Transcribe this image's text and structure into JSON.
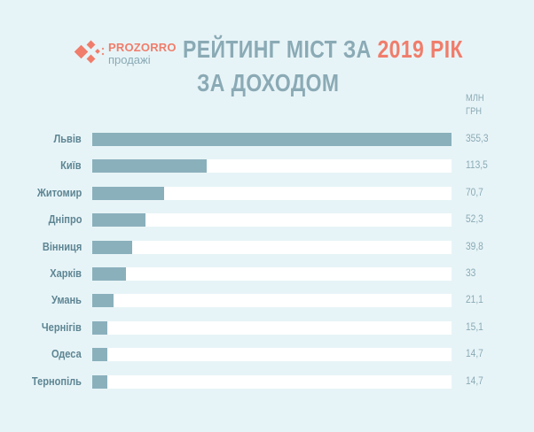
{
  "header": {
    "logo": {
      "brand": "PROZORRO",
      "sub": "продажі",
      "icon": "diamond-cluster-icon"
    },
    "title_part1": "РЕЙТИНГ МІСТ ЗА",
    "title_accent": "2019 РІК",
    "title_line2": "ЗА ДОХОДОМ",
    "unit_line1": "МЛН",
    "unit_line2": "ГРН"
  },
  "colors": {
    "background": "#e7f4f7",
    "bar": "#8ab0bc",
    "track": "#ffffff",
    "title": "#8aaab5",
    "accent": "#f07d6b",
    "label": "#5d8593"
  },
  "chart_data": {
    "type": "bar",
    "orientation": "horizontal",
    "title": "РЕЙТИНГ МІСТ ЗА 2019 РІК ЗА ДОХОДОМ",
    "xlabel": "",
    "ylabel": "",
    "unit": "МЛН ГРН",
    "categories": [
      "Львів",
      "Київ",
      "Житомир",
      "Дніпро",
      "Вінниця",
      "Харків",
      "Умань",
      "Чернігів",
      "Одеса",
      "Тернопіль"
    ],
    "values": [
      355.3,
      113.5,
      70.7,
      52.3,
      39.8,
      33,
      21.1,
      15.1,
      14.7,
      14.7
    ],
    "value_labels": [
      "355,3",
      "113,5",
      "70,7",
      "52,3",
      "39,8",
      "33",
      "21,1",
      "15,1",
      "14,7",
      "14,7"
    ],
    "xlim": [
      0,
      355.3
    ],
    "grid": false,
    "legend": false
  }
}
